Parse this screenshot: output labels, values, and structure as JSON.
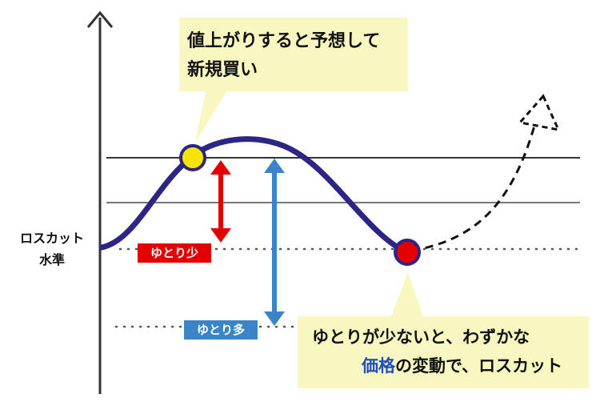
{
  "callouts": {
    "buy": {
      "line1": "値上がりすると予想して",
      "line2": "新規買い"
    },
    "losscut": {
      "line1": "ゆとりが少ないと、わずかな",
      "line2_highlight": "価格",
      "line2_rest": "の変動で、ロスカット"
    }
  },
  "tags": {
    "small_margin": "ゆとり少",
    "large_margin": "ゆとり多"
  },
  "axis_label": {
    "line1": "ロスカット",
    "line2": "水準"
  },
  "colors": {
    "curve": "#2b2686",
    "buy_point": "#f5e400",
    "losscut_point": "#e30000",
    "arrow_small": "#e30000",
    "arrow_large": "#3a85c8",
    "bubble": "#f8f7c0",
    "highlight_text": "#1f4fbf"
  }
}
